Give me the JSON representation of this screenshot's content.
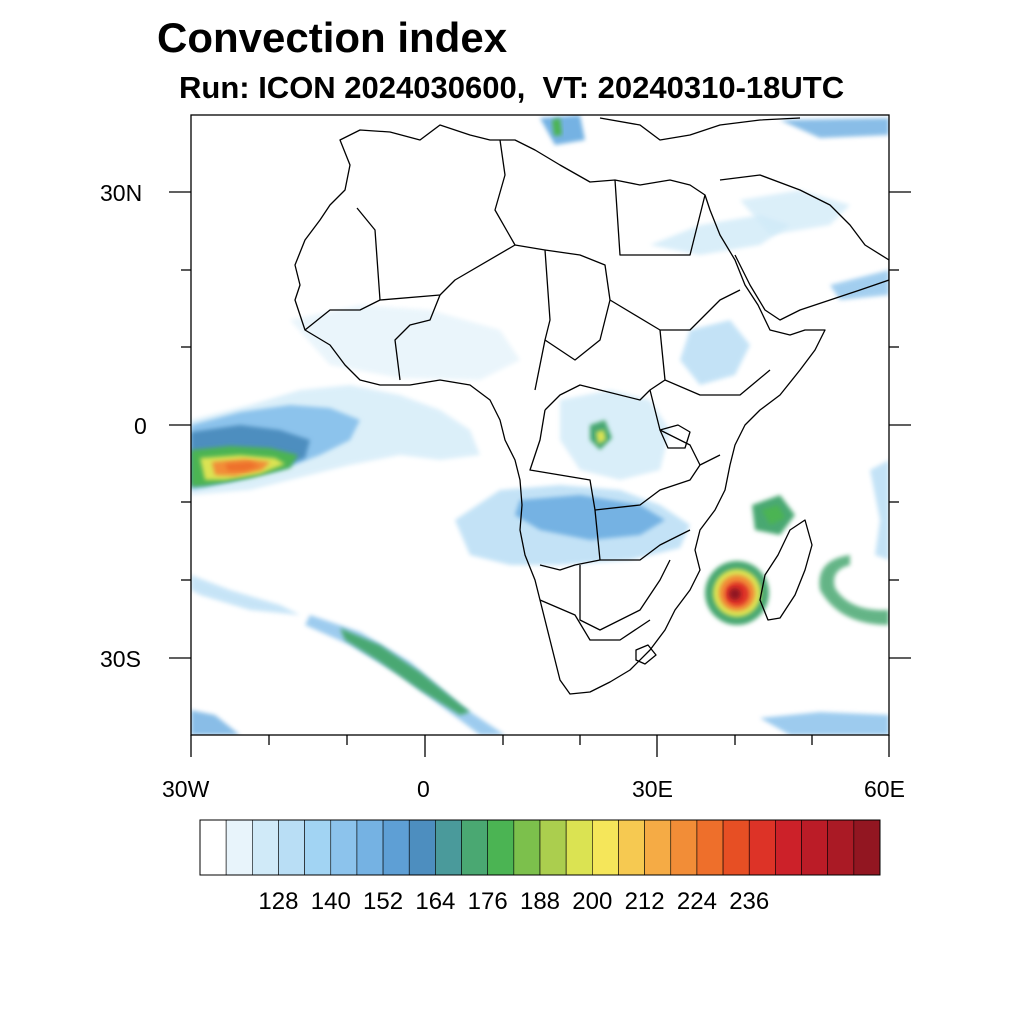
{
  "title": "Convection index",
  "subtitle": "Run: ICON 2024030600,  VT: 20240310-18UTC",
  "axes": {
    "lon_ticks": [
      "30W",
      "0",
      "30E",
      "60E"
    ],
    "lat_ticks": [
      "30N",
      "0",
      "30S"
    ]
  },
  "colorbar": {
    "colors": [
      "#ffffff",
      "#e8f4fb",
      "#d0eaf8",
      "#b9def5",
      "#a2d4f3",
      "#8cc3ec",
      "#75b2e3",
      "#5e9fd5",
      "#4d8ebf",
      "#4a9a9b",
      "#4aa872",
      "#4bb453",
      "#7cc04c",
      "#abce4e",
      "#dbe352",
      "#f5e65a",
      "#f6c951",
      "#f5ab45",
      "#f28d37",
      "#ee6f2b",
      "#e74f24",
      "#dd3327",
      "#cc2129",
      "#bb1c27",
      "#aa1a25",
      "#921621"
    ],
    "labels": [
      "128",
      "140",
      "152",
      "164",
      "176",
      "188",
      "200",
      "212",
      "224",
      "236"
    ]
  }
}
